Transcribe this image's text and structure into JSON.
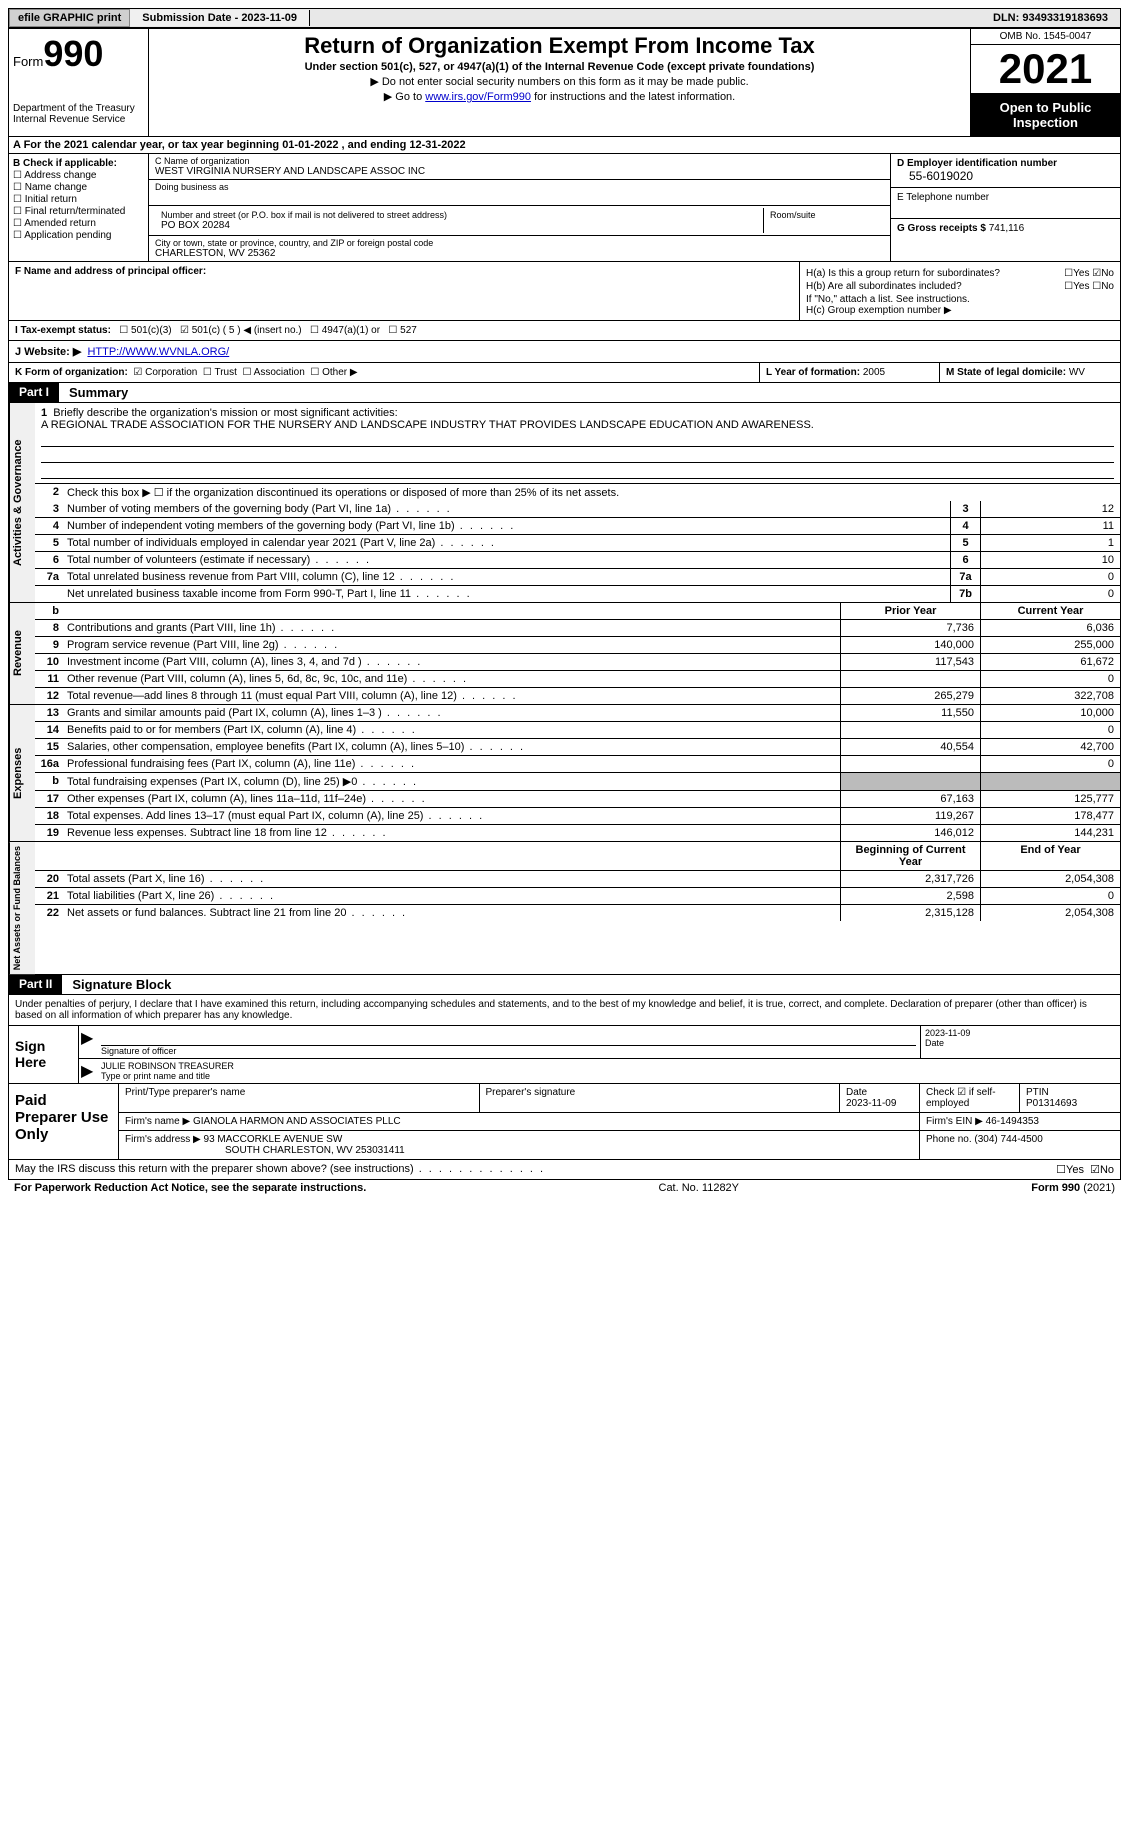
{
  "topbar": {
    "efile_label": "efile GRAPHIC print",
    "submission_label": "Submission Date - 2023-11-09",
    "dln_label": "DLN: 93493319183693"
  },
  "header": {
    "form_label": "Form",
    "form_num": "990",
    "dept": "Department of the Treasury Internal Revenue Service",
    "title": "Return of Organization Exempt From Income Tax",
    "subtitle": "Under section 501(c), 527, or 4947(a)(1) of the Internal Revenue Code (except private foundations)",
    "note1": "▶ Do not enter social security numbers on this form as it may be made public.",
    "note2_pre": "▶ Go to ",
    "note2_link": "www.irs.gov/Form990",
    "note2_post": " for instructions and the latest information.",
    "omb": "OMB No. 1545-0047",
    "year": "2021",
    "open_pub": "Open to Public Inspection"
  },
  "row_a": "A For the 2021 calendar year, or tax year beginning 01-01-2022    , and ending 12-31-2022",
  "col_b": {
    "title": "B Check if applicable:",
    "items": [
      "Address change",
      "Name change",
      "Initial return",
      "Final return/terminated",
      "Amended return",
      "Application pending"
    ]
  },
  "col_c": {
    "name_label": "C Name of organization",
    "name": "WEST VIRGINIA NURSERY AND LANDSCAPE ASSOC INC",
    "dba_label": "Doing business as",
    "addr_label": "Number and street (or P.O. box if mail is not delivered to street address)",
    "room_label": "Room/suite",
    "addr": "PO BOX 20284",
    "city_label": "City or town, state or province, country, and ZIP or foreign postal code",
    "city": "CHARLESTON, WV  25362"
  },
  "col_d": {
    "ein_label": "D Employer identification number",
    "ein": "55-6019020",
    "phone_label": "E Telephone number",
    "gross_label": "G Gross receipts $",
    "gross": "741,116"
  },
  "row_f": {
    "f_label": "F  Name and address of principal officer:",
    "ha_label": "H(a)  Is this a group return for subordinates?",
    "hb_label": "H(b)  Are all subordinates included?",
    "h_note": "If \"No,\" attach a list. See instructions.",
    "hc_label": "H(c)  Group exemption number ▶",
    "yes": "Yes",
    "no": "No"
  },
  "row_i": {
    "label": "I   Tax-exempt status:",
    "opts": [
      "501(c)(3)",
      "501(c) ( 5 ) ◀ (insert no.)",
      "4947(a)(1) or",
      "527"
    ]
  },
  "row_j": {
    "label": "J   Website: ▶",
    "url": "HTTP://WWW.WVNLA.ORG/"
  },
  "row_k": {
    "k_label": "K Form of organization:",
    "k_opts": [
      "Corporation",
      "Trust",
      "Association",
      "Other ▶"
    ],
    "l_label": "L Year of formation:",
    "l_val": "2005",
    "m_label": "M State of legal domicile:",
    "m_val": "WV"
  },
  "part1": {
    "tag": "Part I",
    "title": "Summary"
  },
  "vtabs": {
    "ag": "Activities & Governance",
    "rev": "Revenue",
    "exp": "Expenses",
    "na": "Net Assets or\nFund Balances"
  },
  "mission": {
    "num": "1",
    "label": "Briefly describe the organization's mission or most significant activities:",
    "text": "A REGIONAL TRADE ASSOCIATION FOR THE NURSERY AND LANDSCAPE INDUSTRY THAT PROVIDES LANDSCAPE EDUCATION AND AWARENESS."
  },
  "line2": {
    "num": "2",
    "text": "Check this box ▶ ☐  if the organization discontinued its operations or disposed of more than 25% of its net assets."
  },
  "lines_ag": [
    {
      "n": "3",
      "d": "Number of voting members of the governing body (Part VI, line 1a)",
      "bn": "3",
      "v": "12"
    },
    {
      "n": "4",
      "d": "Number of independent voting members of the governing body (Part VI, line 1b)",
      "bn": "4",
      "v": "11"
    },
    {
      "n": "5",
      "d": "Total number of individuals employed in calendar year 2021 (Part V, line 2a)",
      "bn": "5",
      "v": "1"
    },
    {
      "n": "6",
      "d": "Total number of volunteers (estimate if necessary)",
      "bn": "6",
      "v": "10"
    },
    {
      "n": "7a",
      "d": "Total unrelated business revenue from Part VIII, column (C), line 12",
      "bn": "7a",
      "v": "0"
    },
    {
      "n": "",
      "d": "Net unrelated business taxable income from Form 990-T, Part I, line 11",
      "bn": "7b",
      "v": "0"
    }
  ],
  "col_hdrs": {
    "prior": "Prior Year",
    "current": "Current Year"
  },
  "lines_rev": [
    {
      "n": "8",
      "d": "Contributions and grants (Part VIII, line 1h)",
      "py": "7,736",
      "cy": "6,036"
    },
    {
      "n": "9",
      "d": "Program service revenue (Part VIII, line 2g)",
      "py": "140,000",
      "cy": "255,000"
    },
    {
      "n": "10",
      "d": "Investment income (Part VIII, column (A), lines 3, 4, and 7d )",
      "py": "117,543",
      "cy": "61,672"
    },
    {
      "n": "11",
      "d": "Other revenue (Part VIII, column (A), lines 5, 6d, 8c, 9c, 10c, and 11e)",
      "py": "",
      "cy": "0"
    },
    {
      "n": "12",
      "d": "Total revenue—add lines 8 through 11 (must equal Part VIII, column (A), line 12)",
      "py": "265,279",
      "cy": "322,708"
    }
  ],
  "lines_exp": [
    {
      "n": "13",
      "d": "Grants and similar amounts paid (Part IX, column (A), lines 1–3 )",
      "py": "11,550",
      "cy": "10,000"
    },
    {
      "n": "14",
      "d": "Benefits paid to or for members (Part IX, column (A), line 4)",
      "py": "",
      "cy": "0"
    },
    {
      "n": "15",
      "d": "Salaries, other compensation, employee benefits (Part IX, column (A), lines 5–10)",
      "py": "40,554",
      "cy": "42,700"
    },
    {
      "n": "16a",
      "d": "Professional fundraising fees (Part IX, column (A), line 11e)",
      "py": "",
      "cy": "0"
    },
    {
      "n": "b",
      "d": "Total fundraising expenses (Part IX, column (D), line 25) ▶0",
      "py": "shade",
      "cy": "shade"
    },
    {
      "n": "17",
      "d": "Other expenses (Part IX, column (A), lines 11a–11d, 11f–24e)",
      "py": "67,163",
      "cy": "125,777"
    },
    {
      "n": "18",
      "d": "Total expenses. Add lines 13–17 (must equal Part IX, column (A), line 25)",
      "py": "119,267",
      "cy": "178,477"
    },
    {
      "n": "19",
      "d": "Revenue less expenses. Subtract line 18 from line 12",
      "py": "146,012",
      "cy": "144,231"
    }
  ],
  "col_hdrs2": {
    "begin": "Beginning of Current Year",
    "end": "End of Year"
  },
  "lines_na": [
    {
      "n": "20",
      "d": "Total assets (Part X, line 16)",
      "py": "2,317,726",
      "cy": "2,054,308"
    },
    {
      "n": "21",
      "d": "Total liabilities (Part X, line 26)",
      "py": "2,598",
      "cy": "0"
    },
    {
      "n": "22",
      "d": "Net assets or fund balances. Subtract line 21 from line 20",
      "py": "2,315,128",
      "cy": "2,054,308"
    }
  ],
  "part2": {
    "tag": "Part II",
    "title": "Signature Block"
  },
  "sig_decl": "Under penalties of perjury, I declare that I have examined this return, including accompanying schedules and statements, and to the best of my knowledge and belief, it is true, correct, and complete. Declaration of preparer (other than officer) is based on all information of which preparer has any knowledge.",
  "sign": {
    "left": "Sign Here",
    "sig_label": "Signature of officer",
    "date_label": "Date",
    "date": "2023-11-09",
    "name": "JULIE ROBINSON  TREASURER",
    "name_label": "Type or print name and title"
  },
  "prep": {
    "left": "Paid Preparer Use Only",
    "r1": {
      "name_label": "Print/Type preparer's name",
      "sig_label": "Preparer's signature",
      "date_label": "Date",
      "date": "2023-11-09",
      "check_label": "Check ☑ if self-employed",
      "ptin_label": "PTIN",
      "ptin": "P01314693"
    },
    "r2": {
      "firm_label": "Firm's name      ▶",
      "firm": "GIANOLA HARMON AND ASSOCIATES PLLC",
      "ein_label": "Firm's EIN ▶",
      "ein": "46-1494353"
    },
    "r3": {
      "addr_label": "Firm's address ▶",
      "addr1": "93 MACCORKLE AVENUE SW",
      "addr2": "SOUTH CHARLESTON, WV  253031411",
      "phone_label": "Phone no.",
      "phone": "(304) 744-4500"
    }
  },
  "discuss": {
    "text": "May the IRS discuss this return with the preparer shown above? (see instructions)",
    "yes": "Yes",
    "no": "No"
  },
  "footer": {
    "l": "For Paperwork Reduction Act Notice, see the separate instructions.",
    "c": "Cat. No. 11282Y",
    "r": "Form 990 (2021)"
  }
}
